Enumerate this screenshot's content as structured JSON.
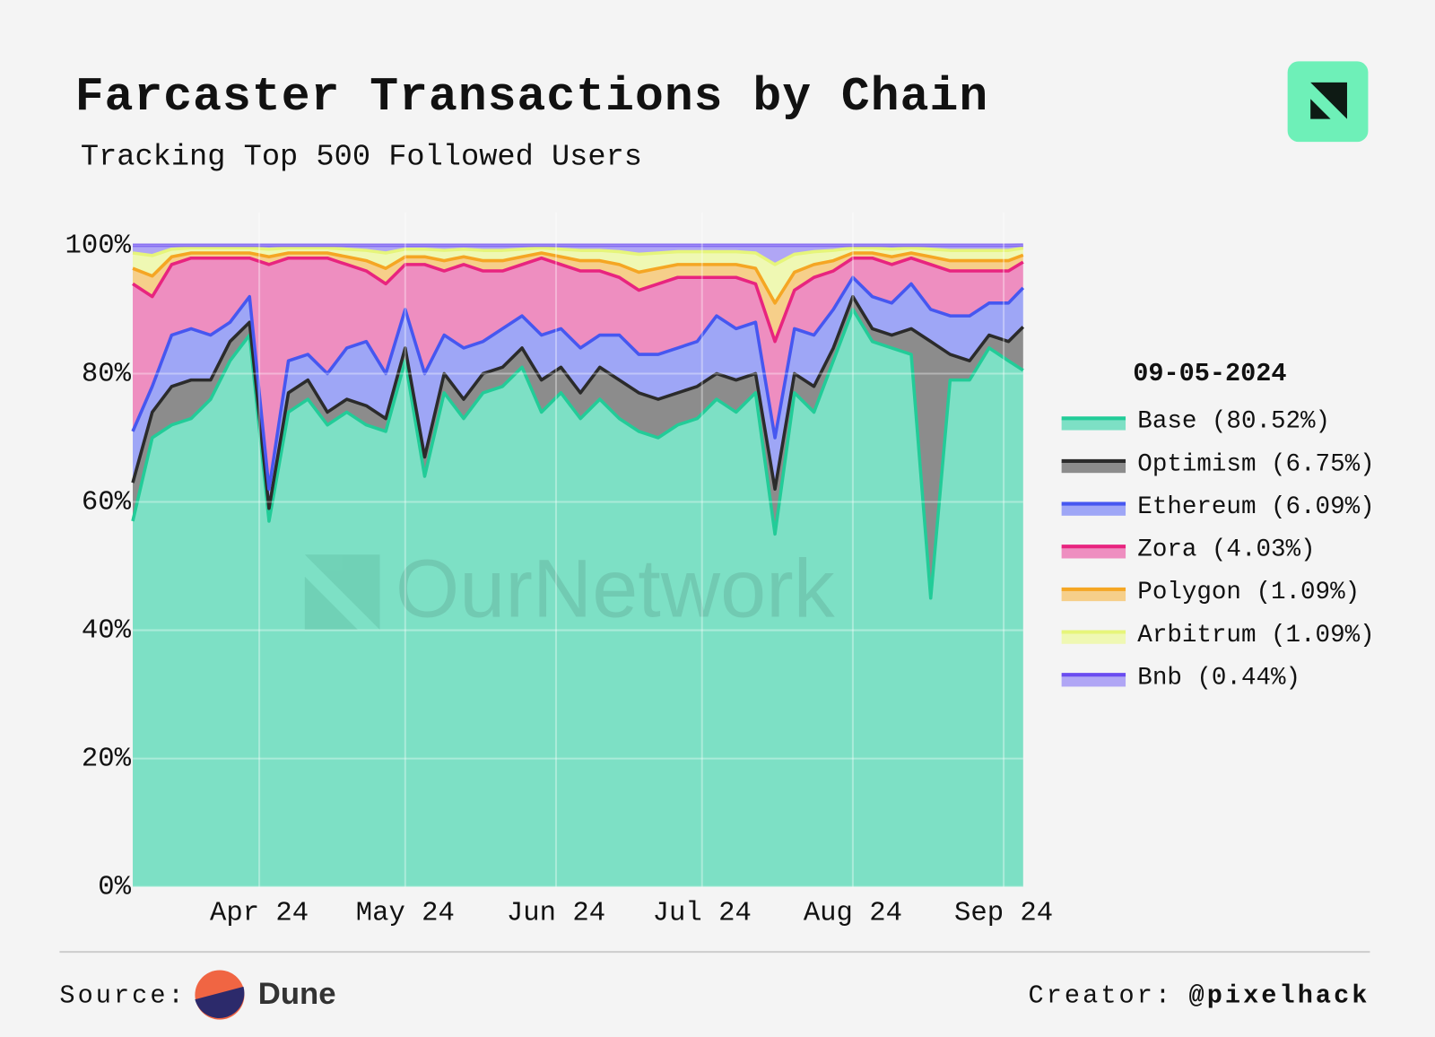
{
  "chart_data": {
    "type": "stacked_area",
    "title": "Farcaster Transactions by Chain",
    "subtitle": "Tracking Top 500 Followed Users",
    "watermark": "OurNetwork",
    "legend_title": "09-05-2024",
    "x": [
      "2024-03-06",
      "2024-03-10",
      "2024-03-14",
      "2024-03-18",
      "2024-03-22",
      "2024-03-26",
      "2024-03-30",
      "2024-04-03",
      "2024-04-07",
      "2024-04-11",
      "2024-04-15",
      "2024-04-19",
      "2024-04-23",
      "2024-04-27",
      "2024-05-01",
      "2024-05-05",
      "2024-05-09",
      "2024-05-13",
      "2024-05-17",
      "2024-05-21",
      "2024-05-25",
      "2024-05-29",
      "2024-06-02",
      "2024-06-06",
      "2024-06-10",
      "2024-06-14",
      "2024-06-18",
      "2024-06-22",
      "2024-06-26",
      "2024-06-30",
      "2024-07-04",
      "2024-07-08",
      "2024-07-12",
      "2024-07-16",
      "2024-07-20",
      "2024-07-24",
      "2024-07-28",
      "2024-08-01",
      "2024-08-05",
      "2024-08-09",
      "2024-08-13",
      "2024-08-17",
      "2024-08-21",
      "2024-08-25",
      "2024-08-29",
      "2024-09-02",
      "2024-09-05"
    ],
    "xlim": [
      "2024-03-06",
      "2024-09-05"
    ],
    "xticks": [
      {
        "value": "2024-04-01",
        "label": "Apr 24"
      },
      {
        "value": "2024-05-01",
        "label": "May 24"
      },
      {
        "value": "2024-06-01",
        "label": "Jun 24"
      },
      {
        "value": "2024-07-01",
        "label": "Jul 24"
      },
      {
        "value": "2024-08-01",
        "label": "Aug 24"
      },
      {
        "value": "2024-09-01",
        "label": "Sep 24"
      }
    ],
    "ylim": [
      0,
      100
    ],
    "yticks": [
      {
        "value": 0,
        "label": "0%"
      },
      {
        "value": 20,
        "label": "20%"
      },
      {
        "value": 40,
        "label": "40%"
      },
      {
        "value": 60,
        "label": "60%"
      },
      {
        "value": 80,
        "label": "80%"
      },
      {
        "value": 100,
        "label": "100%"
      }
    ],
    "grid": true,
    "legend": "right",
    "series": [
      {
        "name": "Base (80.52%)",
        "color": "#22cc98",
        "fill": "#7de0c5",
        "values": [
          57,
          70,
          72,
          73,
          76,
          82,
          86,
          57,
          74,
          76,
          72,
          74,
          72,
          71,
          82,
          64,
          77,
          73,
          77,
          78,
          81,
          74,
          77,
          73,
          76,
          73,
          71,
          70,
          72,
          73,
          76,
          74,
          77,
          55,
          77,
          74,
          82,
          90,
          85,
          84,
          83,
          45,
          79,
          79,
          84,
          82,
          80.52
        ]
      },
      {
        "name": "Optimism (6.75%)",
        "color": "#2b2b2b",
        "fill": "#8c8c8c",
        "values": [
          6,
          4,
          6,
          6,
          3,
          3,
          2,
          2,
          3,
          3,
          2,
          2,
          3,
          2,
          2,
          3,
          3,
          3,
          3,
          3,
          3,
          5,
          4,
          4,
          5,
          6,
          6,
          6,
          5,
          5,
          4,
          5,
          3,
          7,
          3,
          4,
          2,
          2,
          2,
          2,
          4,
          40,
          4,
          3,
          2,
          3,
          6.75
        ]
      },
      {
        "name": "Ethereum (6.09%)",
        "color": "#4657f0",
        "fill": "#9ea6f6",
        "values": [
          8,
          4,
          8,
          8,
          7,
          3,
          4,
          3,
          5,
          4,
          6,
          8,
          10,
          7,
          6,
          13,
          6,
          8,
          5,
          6,
          5,
          7,
          6,
          7,
          5,
          7,
          6,
          7,
          7,
          7,
          9,
          8,
          8,
          8,
          7,
          8,
          6,
          3,
          5,
          5,
          7,
          5,
          6,
          7,
          5,
          6,
          6.09
        ]
      },
      {
        "name": "Zora (4.03%)",
        "color": "#e8247f",
        "fill": "#ee8ec0",
        "values": [
          23,
          14,
          11,
          11,
          12,
          10,
          6,
          35,
          16,
          15,
          18,
          13,
          11,
          14,
          7,
          17,
          10,
          13,
          11,
          9,
          8,
          12,
          10,
          12,
          10,
          9,
          10,
          11,
          11,
          10,
          6,
          8,
          6,
          15,
          6,
          9,
          6,
          3,
          6,
          6,
          4,
          7,
          7,
          7,
          5,
          5,
          4.03
        ]
      },
      {
        "name": "Polygon (1.09%)",
        "color": "#f5a623",
        "fill": "#f6cf8a",
        "values": [
          2.4,
          3.2,
          1.2,
          0.8,
          0.8,
          0.8,
          0.8,
          1.2,
          0.8,
          0.8,
          0.8,
          1.2,
          1.6,
          2.4,
          1.2,
          1.2,
          1.6,
          1.2,
          1.6,
          1.6,
          1.2,
          0.8,
          1.2,
          1.6,
          1.6,
          2,
          2.8,
          2.4,
          2,
          2,
          2,
          2,
          2.4,
          6,
          2.8,
          2,
          1.6,
          0.8,
          0.8,
          1.2,
          0.8,
          1.2,
          1.6,
          1.6,
          1.6,
          1.6,
          1.09
        ]
      },
      {
        "name": "Arbitrum (1.09%)",
        "color": "#e6f57a",
        "fill": "#eff8b3",
        "values": [
          2.4,
          3.2,
          1.2,
          0.8,
          0.8,
          0.8,
          0.8,
          1.2,
          0.8,
          0.8,
          0.8,
          1.2,
          1.6,
          2.4,
          1.2,
          1.2,
          1.6,
          1.2,
          1.6,
          1.6,
          1.2,
          0.8,
          1.2,
          1.6,
          1.6,
          2,
          2.8,
          2.4,
          2,
          2,
          2,
          2,
          2.4,
          6,
          2.8,
          2,
          1.6,
          0.8,
          0.8,
          1.2,
          0.8,
          1.2,
          1.6,
          1.6,
          1.6,
          1.6,
          1.09
        ]
      },
      {
        "name": "Bnb (0.44%)",
        "color": "#6a4cf0",
        "fill": "#b0a6f5",
        "values": [
          1.2,
          1.6,
          0.6,
          0.4,
          0.4,
          0.4,
          0.4,
          0.6,
          0.4,
          0.4,
          0.4,
          0.6,
          0.8,
          1.2,
          0.6,
          0.6,
          0.8,
          0.6,
          0.8,
          0.8,
          0.6,
          0.4,
          0.6,
          0.8,
          0.8,
          1,
          1.4,
          1.2,
          1,
          1,
          1,
          1,
          1.2,
          3,
          1.4,
          1,
          0.8,
          0.4,
          0.4,
          0.6,
          0.4,
          0.6,
          0.8,
          0.8,
          0.8,
          0.8,
          0.44
        ]
      }
    ]
  },
  "footer": {
    "source_label": "Source:",
    "source_name": "Dune",
    "creator_label": "Creator:",
    "creator": "@pixelhack"
  }
}
